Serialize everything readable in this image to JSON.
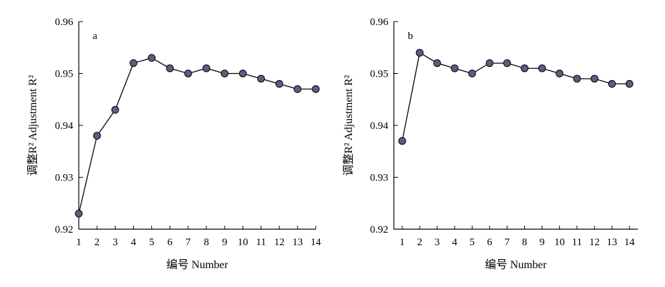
{
  "chart_data": [
    {
      "type": "line",
      "panel_label": "a",
      "xlabel": "编号 Number",
      "ylabel": "调整R² Adjustment R²",
      "ylim": [
        0.92,
        0.96
      ],
      "xlim": [
        1,
        14
      ],
      "yticks": [
        "0.92",
        "0.93",
        "0.94",
        "0.95",
        "0.96"
      ],
      "xticks": [
        "1",
        "2",
        "3",
        "4",
        "5",
        "6",
        "7",
        "8",
        "9",
        "10",
        "11",
        "12",
        "13",
        "14"
      ],
      "grid": false,
      "series": [
        {
          "x": [
            1,
            2,
            3,
            4,
            5,
            6,
            7,
            8,
            9,
            10,
            11,
            12,
            13,
            14
          ],
          "values": [
            0.923,
            0.938,
            0.943,
            0.952,
            0.953,
            0.951,
            0.95,
            0.951,
            0.95,
            0.95,
            0.949,
            0.948,
            0.947,
            0.947
          ]
        }
      ]
    },
    {
      "type": "line",
      "panel_label": "b",
      "xlabel": "编号 Number",
      "ylabel": "调整R² Adjustment R²",
      "ylim": [
        0.92,
        0.96
      ],
      "xlim": [
        1,
        14
      ],
      "yticks": [
        "0.92",
        "0.93",
        "0.94",
        "0.95",
        "0.96"
      ],
      "xticks": [
        "1",
        "2",
        "3",
        "4",
        "5",
        "6",
        "7",
        "8",
        "9",
        "10",
        "11",
        "12",
        "13",
        "14"
      ],
      "grid": false,
      "series": [
        {
          "x": [
            1,
            2,
            3,
            4,
            5,
            6,
            7,
            8,
            9,
            10,
            11,
            12,
            13,
            14
          ],
          "values": [
            0.937,
            0.954,
            0.952,
            0.951,
            0.95,
            0.952,
            0.952,
            0.951,
            0.951,
            0.95,
            0.949,
            0.949,
            0.948,
            0.948
          ]
        }
      ]
    }
  ],
  "colors": {
    "marker_fill": "#5b5e80",
    "marker_stroke": "#000000",
    "line": "#000000",
    "axis": "#000000"
  }
}
